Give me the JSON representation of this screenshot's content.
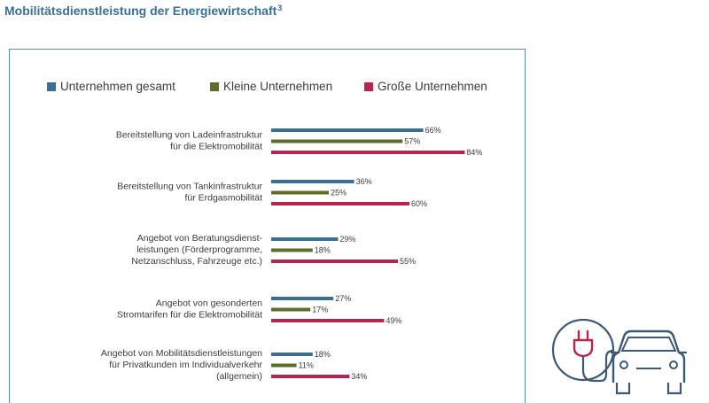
{
  "page": {
    "title": "Mobilitätsdienstleistung der Energiewirtschaft",
    "footnote_mark": "3"
  },
  "colors": {
    "total": "#3b6e95",
    "small": "#5c6d2b",
    "large": "#b5254d",
    "frame": "#5b8db0",
    "title": "#3a6f96",
    "icon": "#3e5a73",
    "icon_accent": "#b5254d"
  },
  "chart_data": {
    "type": "bar",
    "orientation": "horizontal",
    "grid": false,
    "legend_position": "top",
    "value_suffix": "%",
    "categories": [
      [
        "Bereitstellung von Ladeinfrastruktur",
        "für die Elektromobilität"
      ],
      [
        "Bereitstellung von Tankinfrastruktur",
        "für Erdgasmobilität"
      ],
      [
        "Angebot von Beratungsdienst-",
        "leistungen (Förderprogramme,",
        "Netzanschluss, Fahrzeuge etc.)"
      ],
      [
        "Angebot von gesonderten",
        "Stromtarifen für die Elektromobilität"
      ],
      [
        "Angebot von Mobilitätsdienstleistungen",
        "für Privatkunden im Individualverkehr",
        "(allgemein)"
      ]
    ],
    "series": [
      {
        "name": "Unternehmen gesamt",
        "color": "#3b6e95",
        "values": [
          66,
          36,
          29,
          27,
          18
        ]
      },
      {
        "name": "Kleine Unternehmen",
        "color": "#5c6d2b",
        "values": [
          57,
          25,
          18,
          17,
          11
        ]
      },
      {
        "name": "Große Unternehmen",
        "color": "#b5254d",
        "values": [
          84,
          60,
          55,
          49,
          34
        ]
      }
    ]
  },
  "icons": {
    "decoration": "ev-charging-car-icon"
  }
}
